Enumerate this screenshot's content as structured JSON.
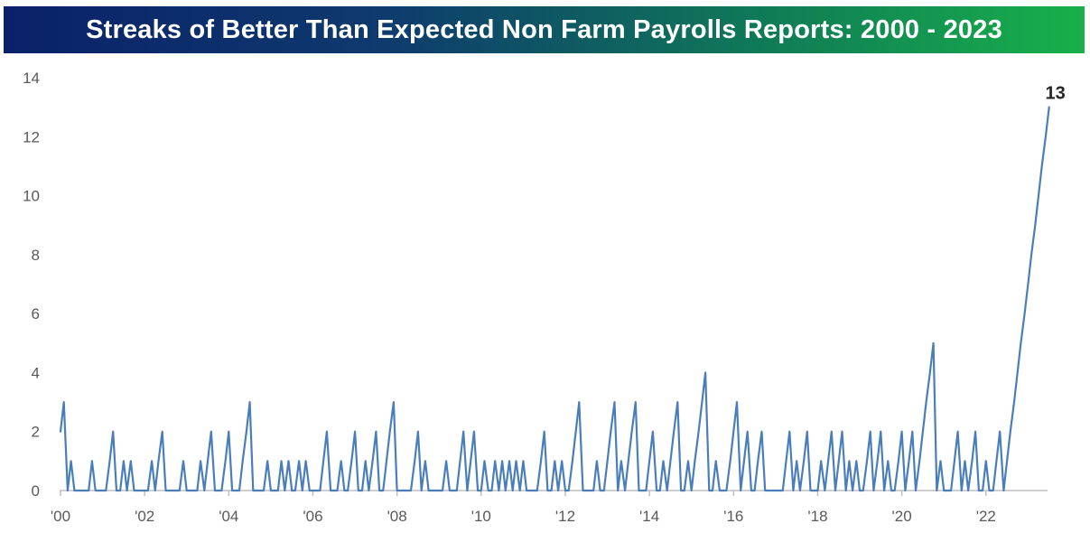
{
  "title": "Streaks of Better Than Expected Non Farm Payrolls Reports: 2000 - 2023",
  "colors": {
    "line": "#4a7ebb",
    "axis": "#bfbfbf",
    "tick_text": "#595959",
    "title_text": "#ffffff",
    "title_bg_start": "#0a2169",
    "title_bg_end": "#18b04a"
  },
  "chart_data": {
    "type": "line",
    "title": "Streaks of Better Than Expected Non Farm Payrolls Reports: 2000 - 2023",
    "xlabel": "",
    "ylabel": "",
    "xlim": [
      2000.0,
      2023.4
    ],
    "ylim": [
      0,
      14
    ],
    "yticks": [
      0,
      2,
      4,
      6,
      8,
      10,
      12,
      14
    ],
    "xticks": [
      {
        "value": 2000,
        "label": "'00"
      },
      {
        "value": 2002,
        "label": "'02"
      },
      {
        "value": 2004,
        "label": "'04"
      },
      {
        "value": 2006,
        "label": "'06"
      },
      {
        "value": 2008,
        "label": "'08"
      },
      {
        "value": 2010,
        "label": "'10"
      },
      {
        "value": 2012,
        "label": "'12"
      },
      {
        "value": 2014,
        "label": "'14"
      },
      {
        "value": 2016,
        "label": "'16"
      },
      {
        "value": 2018,
        "label": "'18"
      },
      {
        "value": 2020,
        "label": "'20"
      },
      {
        "value": 2022,
        "label": "'22"
      }
    ],
    "grid": false,
    "legend": "none",
    "end_label": "13",
    "series": [
      {
        "color": "#4a7ebb",
        "points": [
          [
            2000.0,
            2
          ],
          [
            2000.08,
            3
          ],
          [
            2000.17,
            0
          ],
          [
            2000.25,
            1
          ],
          [
            2000.33,
            0
          ],
          [
            2000.42,
            0
          ],
          [
            2000.5,
            0
          ],
          [
            2000.58,
            0
          ],
          [
            2000.67,
            0
          ],
          [
            2000.75,
            1
          ],
          [
            2000.83,
            0
          ],
          [
            2000.92,
            0
          ],
          [
            2001.0,
            0
          ],
          [
            2001.08,
            0
          ],
          [
            2001.17,
            1
          ],
          [
            2001.25,
            2
          ],
          [
            2001.33,
            0
          ],
          [
            2001.42,
            0
          ],
          [
            2001.5,
            1
          ],
          [
            2001.58,
            0
          ],
          [
            2001.67,
            1
          ],
          [
            2001.75,
            0
          ],
          [
            2001.83,
            0
          ],
          [
            2001.92,
            0
          ],
          [
            2002.0,
            0
          ],
          [
            2002.08,
            0
          ],
          [
            2002.17,
            1
          ],
          [
            2002.25,
            0
          ],
          [
            2002.33,
            1
          ],
          [
            2002.42,
            2
          ],
          [
            2002.5,
            0
          ],
          [
            2002.58,
            0
          ],
          [
            2002.67,
            0
          ],
          [
            2002.75,
            0
          ],
          [
            2002.83,
            0
          ],
          [
            2002.92,
            1
          ],
          [
            2003.0,
            0
          ],
          [
            2003.08,
            0
          ],
          [
            2003.17,
            0
          ],
          [
            2003.25,
            0
          ],
          [
            2003.33,
            1
          ],
          [
            2003.42,
            0
          ],
          [
            2003.5,
            1
          ],
          [
            2003.58,
            2
          ],
          [
            2003.67,
            0
          ],
          [
            2003.75,
            0
          ],
          [
            2003.83,
            0
          ],
          [
            2003.92,
            1
          ],
          [
            2004.0,
            2
          ],
          [
            2004.08,
            0
          ],
          [
            2004.17,
            0
          ],
          [
            2004.25,
            0
          ],
          [
            2004.33,
            1
          ],
          [
            2004.42,
            2
          ],
          [
            2004.5,
            3
          ],
          [
            2004.58,
            0
          ],
          [
            2004.67,
            0
          ],
          [
            2004.75,
            0
          ],
          [
            2004.83,
            0
          ],
          [
            2004.92,
            1
          ],
          [
            2005.0,
            0
          ],
          [
            2005.08,
            0
          ],
          [
            2005.17,
            0
          ],
          [
            2005.25,
            1
          ],
          [
            2005.33,
            0
          ],
          [
            2005.42,
            1
          ],
          [
            2005.5,
            0
          ],
          [
            2005.58,
            0
          ],
          [
            2005.67,
            1
          ],
          [
            2005.75,
            0
          ],
          [
            2005.83,
            1
          ],
          [
            2005.92,
            0
          ],
          [
            2006.0,
            0
          ],
          [
            2006.08,
            0
          ],
          [
            2006.17,
            0
          ],
          [
            2006.25,
            1
          ],
          [
            2006.33,
            2
          ],
          [
            2006.42,
            0
          ],
          [
            2006.5,
            0
          ],
          [
            2006.58,
            0
          ],
          [
            2006.67,
            1
          ],
          [
            2006.75,
            0
          ],
          [
            2006.83,
            0
          ],
          [
            2006.92,
            1
          ],
          [
            2007.0,
            2
          ],
          [
            2007.08,
            0
          ],
          [
            2007.17,
            0
          ],
          [
            2007.25,
            1
          ],
          [
            2007.33,
            0
          ],
          [
            2007.42,
            1
          ],
          [
            2007.5,
            2
          ],
          [
            2007.58,
            0
          ],
          [
            2007.67,
            0
          ],
          [
            2007.75,
            1
          ],
          [
            2007.83,
            2
          ],
          [
            2007.92,
            3
          ],
          [
            2008.0,
            0
          ],
          [
            2008.08,
            0
          ],
          [
            2008.17,
            0
          ],
          [
            2008.25,
            0
          ],
          [
            2008.33,
            0
          ],
          [
            2008.42,
            1
          ],
          [
            2008.5,
            2
          ],
          [
            2008.58,
            0
          ],
          [
            2008.67,
            1
          ],
          [
            2008.75,
            0
          ],
          [
            2008.83,
            0
          ],
          [
            2008.92,
            0
          ],
          [
            2009.0,
            0
          ],
          [
            2009.08,
            0
          ],
          [
            2009.17,
            1
          ],
          [
            2009.25,
            0
          ],
          [
            2009.33,
            0
          ],
          [
            2009.42,
            0
          ],
          [
            2009.5,
            1
          ],
          [
            2009.58,
            2
          ],
          [
            2009.67,
            0
          ],
          [
            2009.75,
            1
          ],
          [
            2009.83,
            2
          ],
          [
            2009.92,
            0
          ],
          [
            2010.0,
            0
          ],
          [
            2010.08,
            1
          ],
          [
            2010.17,
            0
          ],
          [
            2010.25,
            0
          ],
          [
            2010.33,
            1
          ],
          [
            2010.42,
            0
          ],
          [
            2010.5,
            1
          ],
          [
            2010.58,
            0
          ],
          [
            2010.67,
            1
          ],
          [
            2010.75,
            0
          ],
          [
            2010.83,
            1
          ],
          [
            2010.92,
            0
          ],
          [
            2011.0,
            1
          ],
          [
            2011.08,
            0
          ],
          [
            2011.17,
            0
          ],
          [
            2011.25,
            0
          ],
          [
            2011.33,
            0
          ],
          [
            2011.42,
            1
          ],
          [
            2011.5,
            2
          ],
          [
            2011.58,
            0
          ],
          [
            2011.67,
            0
          ],
          [
            2011.75,
            1
          ],
          [
            2011.83,
            0
          ],
          [
            2011.92,
            1
          ],
          [
            2012.0,
            0
          ],
          [
            2012.08,
            0
          ],
          [
            2012.17,
            1
          ],
          [
            2012.25,
            2
          ],
          [
            2012.33,
            3
          ],
          [
            2012.42,
            0
          ],
          [
            2012.5,
            0
          ],
          [
            2012.58,
            0
          ],
          [
            2012.67,
            0
          ],
          [
            2012.75,
            1
          ],
          [
            2012.83,
            0
          ],
          [
            2012.92,
            0
          ],
          [
            2013.0,
            1
          ],
          [
            2013.08,
            2
          ],
          [
            2013.17,
            3
          ],
          [
            2013.25,
            0
          ],
          [
            2013.33,
            1
          ],
          [
            2013.42,
            0
          ],
          [
            2013.5,
            1
          ],
          [
            2013.58,
            2
          ],
          [
            2013.67,
            3
          ],
          [
            2013.75,
            0
          ],
          [
            2013.83,
            0
          ],
          [
            2013.92,
            0
          ],
          [
            2014.0,
            1
          ],
          [
            2014.08,
            2
          ],
          [
            2014.17,
            0
          ],
          [
            2014.25,
            0
          ],
          [
            2014.33,
            1
          ],
          [
            2014.42,
            0
          ],
          [
            2014.5,
            1
          ],
          [
            2014.58,
            2
          ],
          [
            2014.67,
            3
          ],
          [
            2014.75,
            0
          ],
          [
            2014.83,
            0
          ],
          [
            2014.92,
            1
          ],
          [
            2015.0,
            0
          ],
          [
            2015.08,
            1
          ],
          [
            2015.17,
            2
          ],
          [
            2015.25,
            3
          ],
          [
            2015.33,
            4
          ],
          [
            2015.42,
            0
          ],
          [
            2015.5,
            0
          ],
          [
            2015.58,
            1
          ],
          [
            2015.67,
            0
          ],
          [
            2015.75,
            0
          ],
          [
            2015.83,
            0
          ],
          [
            2015.92,
            1
          ],
          [
            2016.0,
            2
          ],
          [
            2016.08,
            3
          ],
          [
            2016.17,
            0
          ],
          [
            2016.25,
            1
          ],
          [
            2016.33,
            2
          ],
          [
            2016.42,
            0
          ],
          [
            2016.5,
            0
          ],
          [
            2016.58,
            1
          ],
          [
            2016.67,
            2
          ],
          [
            2016.75,
            0
          ],
          [
            2016.83,
            0
          ],
          [
            2016.92,
            0
          ],
          [
            2017.0,
            0
          ],
          [
            2017.08,
            0
          ],
          [
            2017.17,
            0
          ],
          [
            2017.25,
            1
          ],
          [
            2017.33,
            2
          ],
          [
            2017.42,
            0
          ],
          [
            2017.5,
            1
          ],
          [
            2017.58,
            0
          ],
          [
            2017.67,
            1
          ],
          [
            2017.75,
            2
          ],
          [
            2017.83,
            0
          ],
          [
            2017.92,
            0
          ],
          [
            2018.0,
            0
          ],
          [
            2018.08,
            1
          ],
          [
            2018.17,
            0
          ],
          [
            2018.25,
            1
          ],
          [
            2018.33,
            2
          ],
          [
            2018.42,
            0
          ],
          [
            2018.5,
            1
          ],
          [
            2018.58,
            2
          ],
          [
            2018.67,
            0
          ],
          [
            2018.75,
            1
          ],
          [
            2018.83,
            0
          ],
          [
            2018.92,
            1
          ],
          [
            2019.0,
            0
          ],
          [
            2019.08,
            0
          ],
          [
            2019.17,
            1
          ],
          [
            2019.25,
            2
          ],
          [
            2019.33,
            0
          ],
          [
            2019.42,
            1
          ],
          [
            2019.5,
            2
          ],
          [
            2019.58,
            0
          ],
          [
            2019.67,
            1
          ],
          [
            2019.75,
            0
          ],
          [
            2019.83,
            0
          ],
          [
            2019.92,
            1
          ],
          [
            2020.0,
            2
          ],
          [
            2020.08,
            0
          ],
          [
            2020.17,
            1
          ],
          [
            2020.25,
            2
          ],
          [
            2020.33,
            0
          ],
          [
            2020.42,
            1
          ],
          [
            2020.5,
            2
          ],
          [
            2020.58,
            3
          ],
          [
            2020.67,
            4
          ],
          [
            2020.75,
            5
          ],
          [
            2020.83,
            0
          ],
          [
            2020.92,
            1
          ],
          [
            2021.0,
            0
          ],
          [
            2021.08,
            0
          ],
          [
            2021.17,
            0
          ],
          [
            2021.25,
            1
          ],
          [
            2021.33,
            2
          ],
          [
            2021.42,
            0
          ],
          [
            2021.5,
            1
          ],
          [
            2021.58,
            0
          ],
          [
            2021.67,
            1
          ],
          [
            2021.75,
            2
          ],
          [
            2021.83,
            0
          ],
          [
            2021.92,
            0
          ],
          [
            2022.0,
            1
          ],
          [
            2022.08,
            0
          ],
          [
            2022.17,
            0
          ],
          [
            2022.25,
            1
          ],
          [
            2022.33,
            2
          ],
          [
            2022.42,
            0
          ],
          [
            2022.5,
            1
          ],
          [
            2022.58,
            2
          ],
          [
            2022.67,
            3
          ],
          [
            2022.75,
            4
          ],
          [
            2022.83,
            5
          ],
          [
            2022.92,
            6
          ],
          [
            2023.0,
            7
          ],
          [
            2023.08,
            8
          ],
          [
            2023.17,
            9
          ],
          [
            2023.25,
            10
          ],
          [
            2023.33,
            11
          ],
          [
            2023.42,
            12
          ],
          [
            2023.5,
            13
          ]
        ]
      }
    ]
  }
}
